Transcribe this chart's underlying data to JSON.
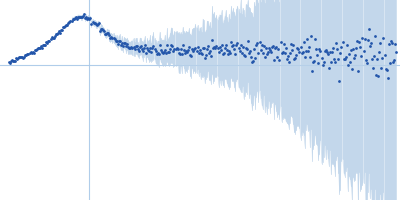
{
  "dot_color": "#2255aa",
  "error_color": "#b8d0e8",
  "background_color": "#ffffff",
  "hline_color": "#a8c8e8",
  "vline_color": "#a8c8e8",
  "n_points": 370,
  "seed": 7
}
